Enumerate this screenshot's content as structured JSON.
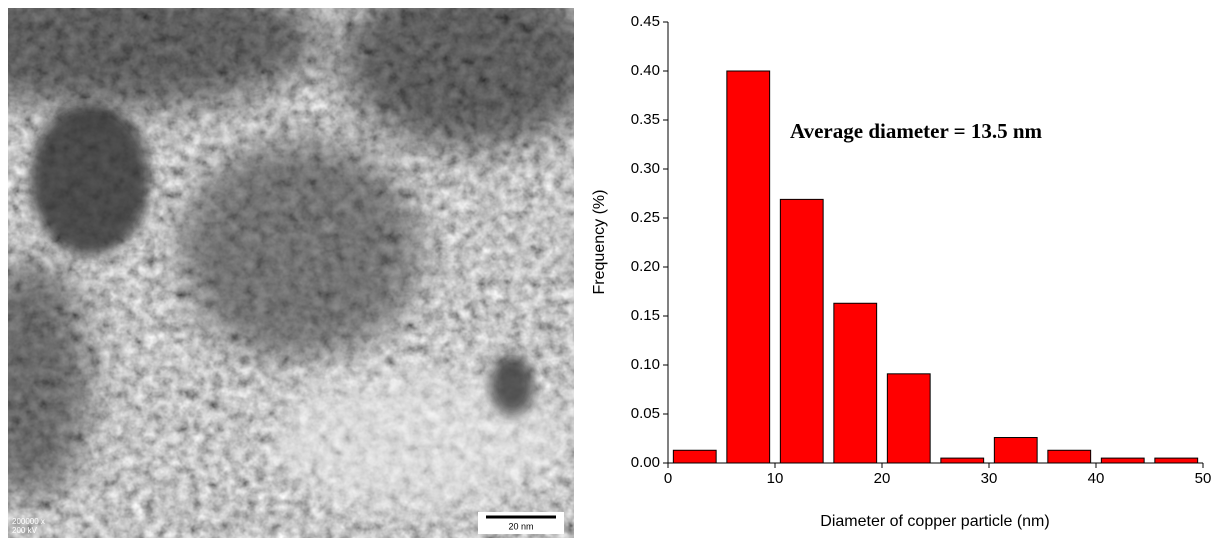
{
  "image": {
    "magnification": "200000 x",
    "voltage": "200 kV",
    "scale_bar": "20 nm"
  },
  "chart_data": {
    "type": "histogram",
    "xlabel": "Diameter of copper particle (nm)",
    "ylabel": "Frequency (%)",
    "annotation": "Average diameter = 13.5 nm",
    "bins": [
      0,
      5,
      10,
      15,
      20,
      25,
      30,
      35,
      40,
      45,
      50
    ],
    "values": [
      0.013,
      0.4,
      0.269,
      0.163,
      0.091,
      0.005,
      0.026,
      0.013,
      0.005,
      0.005
    ],
    "color": "#ff0000",
    "xlim": [
      0,
      50
    ],
    "xticks": [
      0,
      10,
      20,
      30,
      40,
      50
    ],
    "ylim": [
      0,
      0.45
    ],
    "yticks": [
      {
        "value": 0,
        "label": "0.00"
      },
      0.05,
      {
        "value": 0.1,
        "label": "0.10"
      },
      0.15,
      {
        "value": 0.2,
        "label": "0.20"
      },
      0.25,
      {
        "value": 0.3,
        "label": "0.30"
      },
      0.35,
      {
        "value": 0.4,
        "label": "0.40"
      },
      0.45
    ]
  }
}
